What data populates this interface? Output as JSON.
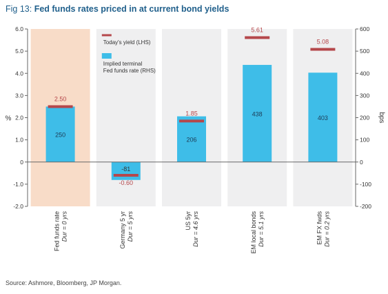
{
  "figure": {
    "number": "Fig 13:",
    "title": "Fed funds rates priced in at current bond yields",
    "source": "Source: Ashmore, Bloomberg, JP Morgan."
  },
  "chart_data": {
    "type": "bar",
    "categories": [
      {
        "name": "Fed funds rate",
        "duration": "Dur = 0 yrs"
      },
      {
        "name": "Germany 5 yr",
        "duration": "Dur = 5 yrs"
      },
      {
        "name": "US 5yr",
        "duration": "Dur = 4.6 yrs"
      },
      {
        "name": "EM local bonds",
        "duration": "Dur = 5.1 yrs"
      },
      {
        "name": "EM FX fwds",
        "duration": "Dur = 0.2 yrs"
      }
    ],
    "series": [
      {
        "name": "Today's yield (LHS)",
        "axis": "left",
        "mark": "dash",
        "color": "#b5474b",
        "values": [
          2.5,
          -0.6,
          1.85,
          5.61,
          5.08
        ],
        "labels": [
          "2.50",
          "-0.60",
          "1.85",
          "5.61",
          "5.08"
        ]
      },
      {
        "name": "Implied terminal Fed funds rate (RHS)",
        "axis": "right",
        "mark": "bar",
        "color": "#3ebde8",
        "values": [
          250,
          -81,
          206,
          438,
          403
        ],
        "labels": [
          "250",
          "-81",
          "206",
          "438",
          "403"
        ]
      }
    ],
    "legend_lines": [
      "Today's yield (LHS)",
      "Implied terminal",
      "Fed funds rate (RHS)"
    ],
    "left_axis": {
      "label": "%",
      "min": -2.0,
      "max": 6.0,
      "ticks": [
        "6.0",
        "5.0",
        "4.0",
        "3.0",
        "2.0",
        "1.0",
        "0",
        "-1.0",
        "-2.0"
      ]
    },
    "right_axis": {
      "label": "bps",
      "min": -200,
      "max": 600,
      "ticks": [
        "600",
        "500",
        "400",
        "300",
        "200",
        "100",
        "0",
        "-100",
        "-200"
      ]
    },
    "background_bands": {
      "first": "#f8dcc8",
      "others": "#efeff0"
    },
    "legend_placement": "top-left of second panel",
    "grid": false
  }
}
